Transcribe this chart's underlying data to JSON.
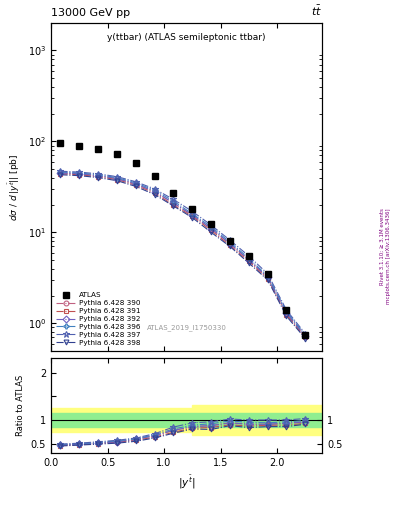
{
  "title_top": "13000 GeV pp",
  "title_top_right": "tt",
  "plot_title": "y(ttbar) (ATLAS semileptonic ttbar)",
  "ylabel_main": "dσ / d |y^{tbar}| | [pb]",
  "ylabel_ratio": "Ratio to ATLAS",
  "xlabel": "|y^{tbar}|",
  "watermark": "ATLAS_2019_I1750330",
  "right_label_top": "Rivet 3.1.10; ≥ 3.1M events",
  "right_label_bot": "mcplots.cern.ch [arXiv:1306.3436]",
  "atlas_x": [
    0.083,
    0.25,
    0.417,
    0.583,
    0.75,
    0.917,
    1.083,
    1.25,
    1.417,
    1.583,
    1.75,
    1.917,
    2.083,
    2.25
  ],
  "atlas_y": [
    95,
    90,
    82,
    72,
    58,
    42,
    27,
    18,
    12.5,
    8.0,
    5.5,
    3.5,
    1.4,
    0.75
  ],
  "mc_x": [
    0.083,
    0.25,
    0.417,
    0.583,
    0.75,
    0.917,
    1.083,
    1.25,
    1.417,
    1.583,
    1.75,
    1.917,
    2.083,
    2.25
  ],
  "series": [
    {
      "label": "Pythia 6.428 390",
      "y": [
        45,
        44,
        42,
        39,
        34,
        28,
        21,
        15.5,
        11,
        7.5,
        5.0,
        3.2,
        1.3,
        0.72
      ],
      "color": "#c06080",
      "marker": "o",
      "ratio": [
        0.47,
        0.49,
        0.51,
        0.54,
        0.59,
        0.67,
        0.78,
        0.86,
        0.88,
        0.94,
        0.91,
        0.91,
        0.93,
        0.96
      ]
    },
    {
      "label": "Pythia 6.428 391",
      "y": [
        44,
        43,
        41,
        38,
        33,
        27,
        20,
        15,
        10.5,
        7.2,
        4.8,
        3.1,
        1.25,
        0.7
      ],
      "color": "#c05050",
      "marker": "s",
      "ratio": [
        0.46,
        0.48,
        0.5,
        0.53,
        0.57,
        0.64,
        0.74,
        0.83,
        0.84,
        0.9,
        0.87,
        0.89,
        0.89,
        0.93
      ]
    },
    {
      "label": "Pythia 6.428 392",
      "y": [
        45,
        44,
        42,
        39,
        34,
        28,
        21,
        15.5,
        11,
        7.5,
        5.0,
        3.2,
        1.3,
        0.72
      ],
      "color": "#7060c0",
      "marker": "D",
      "ratio": [
        0.47,
        0.49,
        0.51,
        0.54,
        0.59,
        0.67,
        0.78,
        0.86,
        0.88,
        0.94,
        0.91,
        0.91,
        0.93,
        0.96
      ]
    },
    {
      "label": "Pythia 6.428 396",
      "y": [
        46,
        45,
        43,
        40,
        35,
        29,
        22,
        16,
        11.5,
        7.8,
        5.2,
        3.3,
        1.35,
        0.74
      ],
      "color": "#4080c0",
      "marker": "P",
      "ratio": [
        0.48,
        0.5,
        0.52,
        0.56,
        0.6,
        0.69,
        0.81,
        0.89,
        0.92,
        0.98,
        0.95,
        0.94,
        0.96,
        0.99
      ]
    },
    {
      "label": "Pythia 6.428 397",
      "y": [
        47,
        46,
        44,
        41,
        36,
        30,
        23,
        17,
        12,
        8.2,
        5.5,
        3.5,
        1.4,
        0.77
      ],
      "color": "#5060b0",
      "marker": "*",
      "ratio": [
        0.49,
        0.51,
        0.54,
        0.57,
        0.62,
        0.71,
        0.85,
        0.94,
        0.96,
        1.02,
        1.0,
        1.0,
        1.0,
        1.03
      ]
    },
    {
      "label": "Pythia 6.428 398",
      "y": [
        43,
        42,
        40,
        37,
        32,
        26,
        19.5,
        14.5,
        10,
        7.0,
        4.6,
        3.0,
        1.2,
        0.68
      ],
      "color": "#304090",
      "marker": "v",
      "ratio": [
        0.45,
        0.47,
        0.49,
        0.51,
        0.55,
        0.62,
        0.72,
        0.81,
        0.8,
        0.88,
        0.84,
        0.86,
        0.86,
        0.91
      ]
    }
  ],
  "xlim": [
    0,
    2.4
  ],
  "ylim_main": [
    0.5,
    2000
  ],
  "ylim_ratio": [
    0.3,
    2.3
  ],
  "ratio_green_lo": 0.85,
  "ratio_green_hi": 1.15,
  "ratio_yellow_lo1": 0.75,
  "ratio_yellow_hi1": 1.25,
  "ratio_yellow_lo2": 0.68,
  "ratio_yellow_hi2": 1.32,
  "ratio_yellow_split": 1.25
}
